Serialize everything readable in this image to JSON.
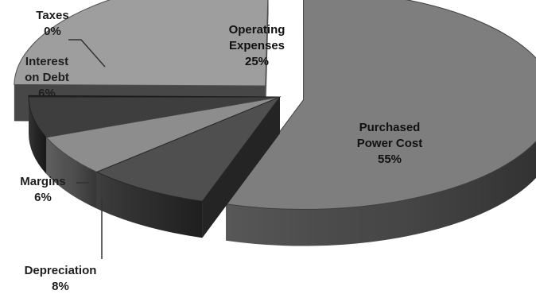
{
  "chart_data": {
    "type": "pie",
    "title": "",
    "slices": [
      {
        "label": "Purchased Power Cost",
        "lines": [
          "Purchased",
          "Power Cost"
        ],
        "value": 55,
        "value_label": "55%",
        "color": "#7e7e7e"
      },
      {
        "label": "Depreciation",
        "lines": [
          "Depreciation"
        ],
        "value": 8,
        "value_label": "8%",
        "color": "#4f4f4f"
      },
      {
        "label": "Margins",
        "lines": [
          "Margins"
        ],
        "value": 6,
        "value_label": "6%",
        "color": "#8d8d8d"
      },
      {
        "label": "Interest on Debt",
        "lines": [
          "Interest",
          "on Debt"
        ],
        "value": 6,
        "value_label": "6%",
        "color": "#3e3e3e"
      },
      {
        "label": "Taxes",
        "lines": [
          "Taxes"
        ],
        "value": 0,
        "value_label": "0%",
        "color": "#2a2a2a"
      },
      {
        "label": "Operating Expenses",
        "lines": [
          "Operating",
          "Expenses"
        ],
        "value": 25,
        "value_label": "25%",
        "color": "#9e9e9e"
      }
    ],
    "exploded": [
      "Purchased Power Cost",
      "Operating Expenses"
    ],
    "style": "3d",
    "legend": "none"
  }
}
